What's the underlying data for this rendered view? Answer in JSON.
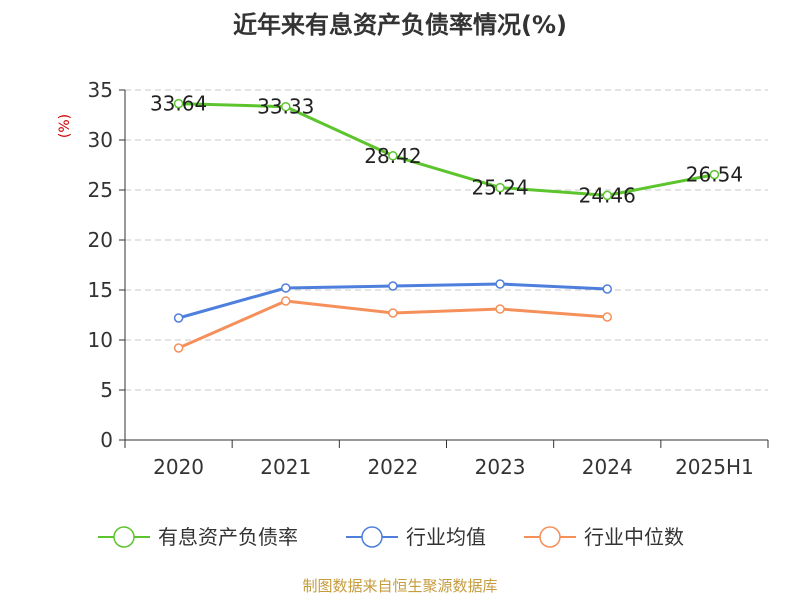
{
  "chart_data": {
    "type": "line",
    "title": "近年来有息资产负债率情况(%)",
    "ylabel": "(%)",
    "xlabel": "",
    "categories": [
      "2020",
      "2021",
      "2022",
      "2023",
      "2024",
      "2025H1"
    ],
    "ylim": [
      0,
      35
    ],
    "yticks": [
      0,
      5,
      10,
      15,
      20,
      25,
      30,
      35
    ],
    "grid": true,
    "legend_position": "bottom",
    "series": [
      {
        "name": "有息资产负债率",
        "color": "#5cc42c",
        "values": [
          33.64,
          33.33,
          28.42,
          25.24,
          24.46,
          26.54
        ],
        "labels": [
          "33.64",
          "33.33",
          "28.42",
          "25.24",
          "24.46",
          "26.54"
        ]
      },
      {
        "name": "行业均值",
        "color": "#4f7fdc",
        "values": [
          12.2,
          15.2,
          15.4,
          15.6,
          15.1,
          null
        ]
      },
      {
        "name": "行业中位数",
        "color": "#f5905a",
        "values": [
          9.2,
          13.9,
          12.7,
          13.1,
          12.3,
          null
        ]
      }
    ]
  },
  "source": "制图数据来自恒生聚源数据库"
}
